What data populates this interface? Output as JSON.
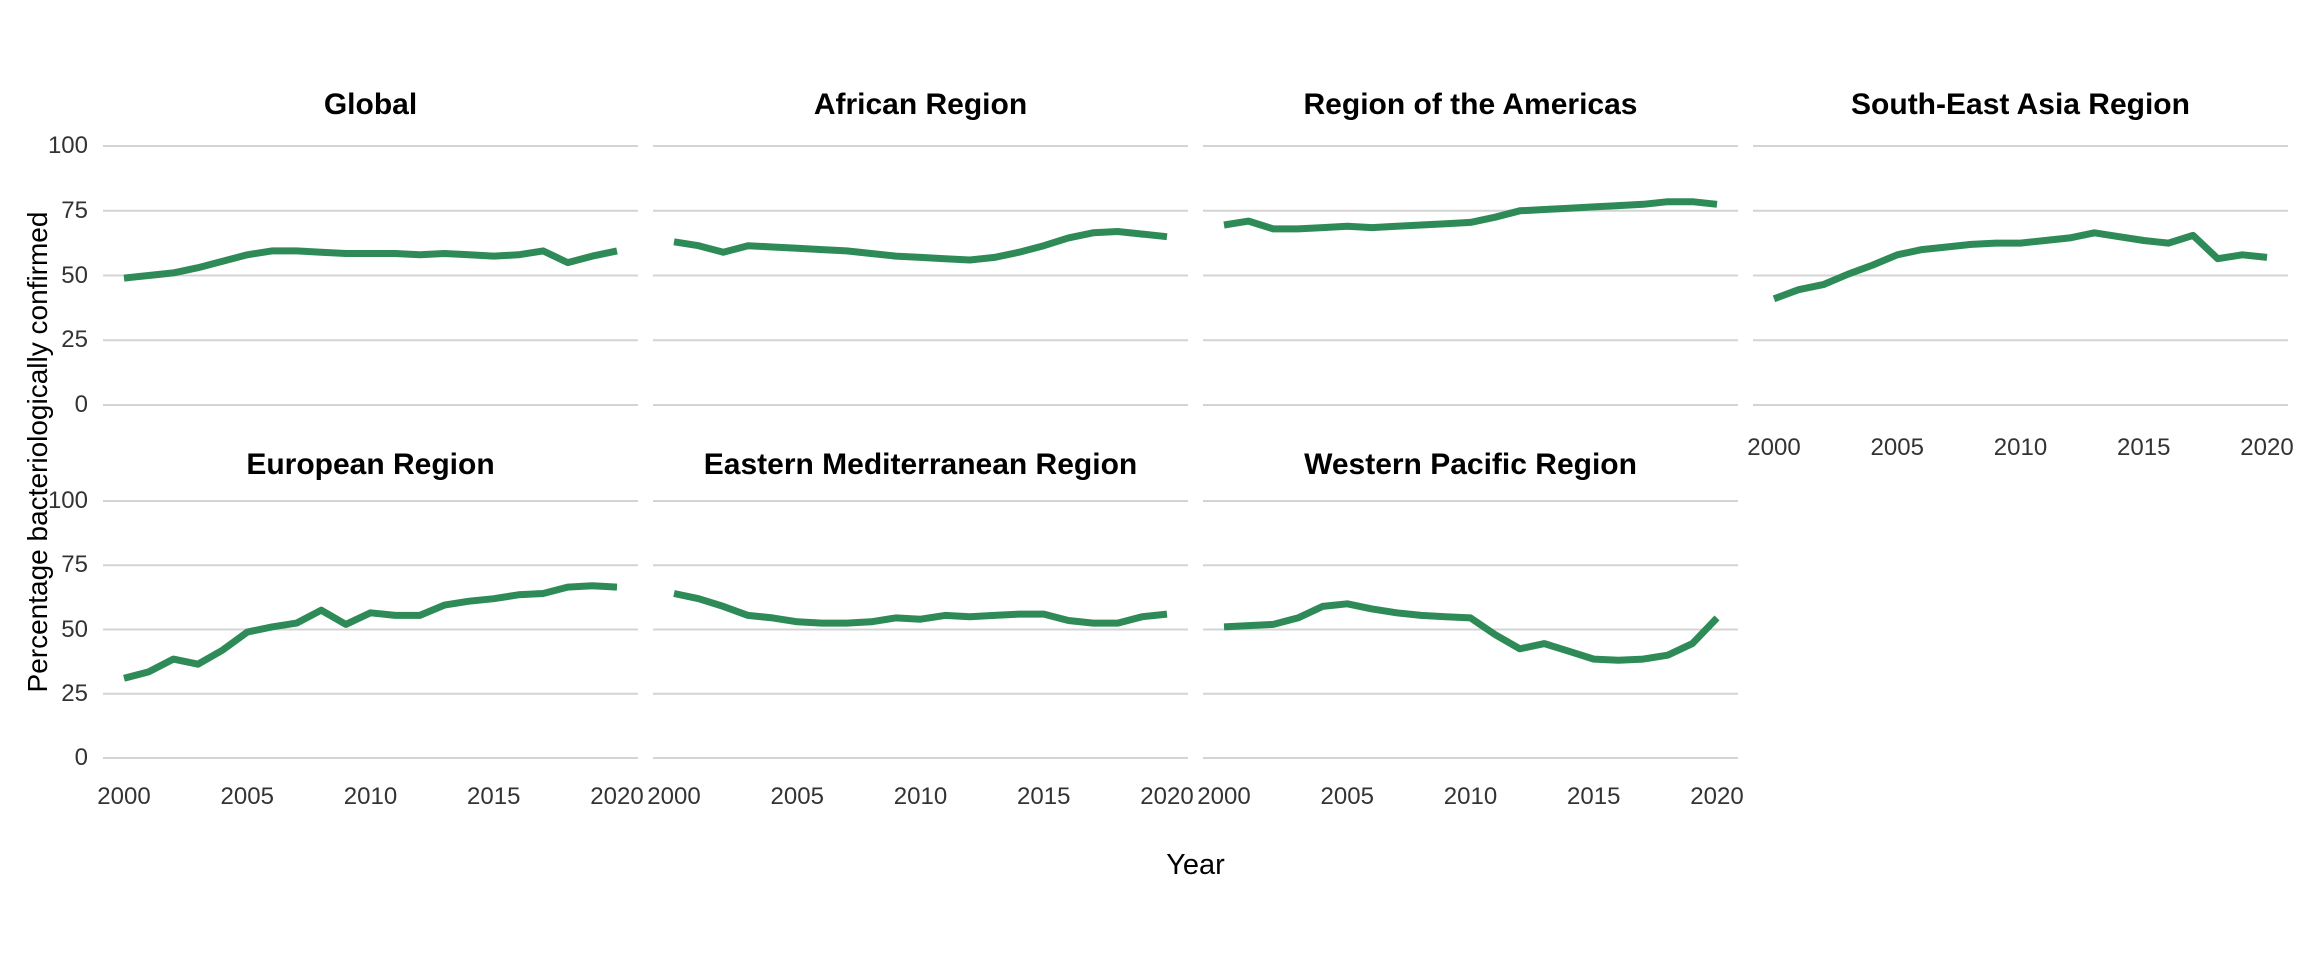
{
  "chart_data": {
    "type": "line",
    "title": "",
    "xlabel": "Year",
    "ylabel": "Percentage bacteriologically confirmed",
    "x": [
      2000,
      2001,
      2002,
      2003,
      2004,
      2005,
      2006,
      2007,
      2008,
      2009,
      2010,
      2011,
      2012,
      2013,
      2014,
      2015,
      2016,
      2017,
      2018,
      2019,
      2020
    ],
    "ylim": [
      0,
      100
    ],
    "y_ticks": [
      100,
      75,
      50,
      25,
      0
    ],
    "y_tick_labels": [
      "100",
      "75",
      "50",
      "25",
      "0"
    ],
    "x_tick_years": [
      2000,
      2005,
      2010,
      2015,
      2020
    ],
    "x_tick_labels": [
      "2000",
      "2005",
      "2010",
      "2015",
      "2020"
    ],
    "grid": "horizontal-major-only",
    "legend": "none",
    "line_color": "#2e8b57",
    "grid_color": "#d4d4d4",
    "facets": [
      {
        "title": "Global",
        "values": [
          49,
          50,
          51,
          53,
          55.5,
          58,
          59.5,
          59.5,
          59,
          58.5,
          58.5,
          58.5,
          58,
          58.5,
          58,
          57.5,
          58,
          59.5,
          55,
          57.5,
          59.5
        ]
      },
      {
        "title": "African Region",
        "values": [
          63,
          61.5,
          59,
          61.5,
          61,
          60.5,
          60,
          59.5,
          58.5,
          57.5,
          57,
          56.5,
          56,
          57,
          59,
          61.5,
          64.5,
          66.5,
          67,
          66,
          65
        ]
      },
      {
        "title": "Region of the Americas",
        "values": [
          69.5,
          71,
          68,
          68,
          68.5,
          69,
          68.5,
          69,
          69.5,
          70,
          70.5,
          72.5,
          75,
          75.5,
          76,
          76.5,
          77,
          77.5,
          78.5,
          78.5,
          77.5
        ]
      },
      {
        "title": "South-East Asia Region",
        "values": [
          41,
          44.5,
          46.5,
          50.5,
          54,
          58,
          60,
          61,
          62,
          62.5,
          62.5,
          63.5,
          64.5,
          66.5,
          65,
          63.5,
          62.5,
          65.5,
          56.5,
          58,
          57
        ]
      },
      {
        "title": "European Region",
        "values": [
          31,
          33.5,
          38.5,
          36.5,
          42,
          49,
          51,
          52.5,
          57.5,
          52,
          56.5,
          55.5,
          55.5,
          59.5,
          61,
          62,
          63.5,
          64,
          66.5,
          67,
          66.5
        ]
      },
      {
        "title": "Eastern Mediterranean Region",
        "values": [
          64,
          62,
          59,
          55.5,
          54.5,
          53,
          52.5,
          52.5,
          53,
          54.5,
          54,
          55.5,
          55,
          55.5,
          56,
          56,
          53.5,
          52.5,
          52.5,
          55,
          56
        ]
      },
      {
        "title": "Western Pacific Region",
        "values": [
          51,
          51.5,
          52,
          54.5,
          59,
          60,
          58,
          56.5,
          55.5,
          55,
          54.5,
          48,
          42.5,
          44.5,
          41.5,
          38.5,
          38,
          38.5,
          40,
          44.5,
          54.5
        ]
      }
    ]
  }
}
